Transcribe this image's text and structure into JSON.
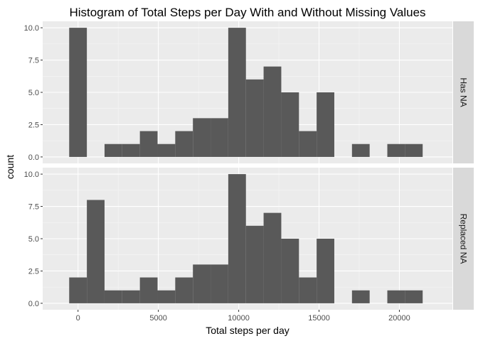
{
  "chart_data": {
    "type": "bar",
    "title": "Histogram of Total Steps per Day With and Without Missing Values",
    "xlabel": "Total steps per day",
    "ylabel": "count",
    "xlim": [
      -2200,
      23300
    ],
    "ylim": [
      -0.5,
      10.5
    ],
    "xticks": [
      0,
      5000,
      10000,
      15000,
      20000
    ],
    "xtick_labels": [
      "0",
      "5000",
      "10000",
      "15000",
      "20000"
    ],
    "yticks": [
      0,
      2.5,
      5,
      7.5,
      10
    ],
    "ytick_labels": [
      "0.0",
      "2.5",
      "5.0",
      "7.5",
      "10.0"
    ],
    "bin_edges": [
      -550,
      550,
      1650,
      2750,
      3850,
      4950,
      6050,
      7150,
      8250,
      9350,
      10450,
      11550,
      12650,
      13750,
      14850,
      15950,
      17050,
      18150,
      19250,
      20350,
      21450
    ],
    "grid": true,
    "legend": "none",
    "colors": {
      "bar": "#595959",
      "panel_background": "#ebebeb",
      "grid_major": "#ffffff",
      "grid_minor": "#f5f5f5",
      "strip_background": "#d9d9d9"
    },
    "series": [
      {
        "name": "Has NA",
        "values": [
          10,
          0,
          1,
          1,
          2,
          1,
          2,
          3,
          3,
          10,
          6,
          7,
          5,
          2,
          5,
          0,
          1,
          0,
          1,
          1
        ]
      },
      {
        "name": "Replaced NA",
        "values": [
          2,
          8,
          1,
          1,
          2,
          1,
          2,
          3,
          3,
          10,
          6,
          7,
          5,
          2,
          5,
          0,
          1,
          0,
          1,
          1
        ]
      }
    ]
  }
}
